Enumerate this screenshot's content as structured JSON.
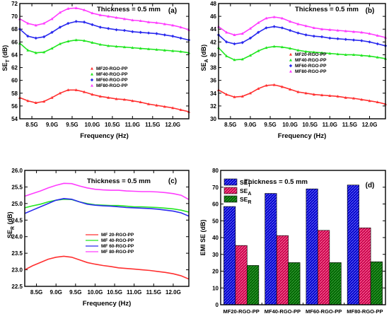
{
  "panel_labels": [
    "(a)",
    "(b)",
    "(c)",
    "(d)"
  ],
  "thickness_text": "Thickness = 0.5 mm",
  "colors": {
    "MF20": "#ff3030",
    "MF40": "#22e622",
    "MF60": "#2a2aee",
    "MF80": "#ff3dff",
    "bar_T": "#0000c8",
    "bar_A": "#c8004a",
    "bar_R": "#006400"
  },
  "chart_data": [
    {
      "type": "line",
      "panel": "(a)",
      "title": "Thickness = 0.5 mm",
      "xlabel": "Frequency (Hz)",
      "ylabel": "SE",
      "ylabel_sub": "T",
      "ylabel_unit": " (dB)",
      "xlim": [
        8.2,
        12.4
      ],
      "ylim": [
        54,
        72
      ],
      "xticks": [
        8.5,
        9.0,
        9.5,
        10.0,
        10.5,
        11.0,
        11.5,
        12.0
      ],
      "xtick_labels": [
        "8.5G",
        "9.0G",
        "9.5G",
        "10.0G",
        "10.5G",
        "11.0G",
        "11.5G",
        "12.0G"
      ],
      "yticks": [
        54,
        56,
        58,
        60,
        62,
        64,
        66,
        68,
        70,
        72
      ],
      "ytick_labels": [
        "54",
        "56",
        "58",
        "60",
        "62",
        "64",
        "66",
        "68",
        "70",
        "72"
      ],
      "legend_position": "center-right",
      "x": [
        8.2,
        8.4,
        8.6,
        8.8,
        9.0,
        9.2,
        9.4,
        9.6,
        9.8,
        10.0,
        10.2,
        10.4,
        10.6,
        10.8,
        11.0,
        11.2,
        11.4,
        11.6,
        11.8,
        12.0,
        12.2,
        12.4
      ],
      "series": [
        {
          "name": "MF20-RGO-PP",
          "color_key": "MF20",
          "marker": "triangle",
          "values": [
            57.3,
            56.8,
            56.5,
            56.7,
            57.3,
            58.0,
            58.5,
            58.5,
            58.2,
            57.8,
            57.5,
            57.3,
            57.1,
            57.0,
            56.8,
            56.6,
            56.3,
            56.1,
            55.9,
            55.7,
            55.4,
            55.1
          ]
        },
        {
          "name": "MF40-RGO-PP",
          "color_key": "MF40",
          "marker": "triangle",
          "values": [
            65.8,
            64.7,
            64.3,
            64.4,
            65.0,
            65.7,
            66.1,
            66.3,
            66.2,
            65.9,
            65.6,
            65.4,
            65.3,
            65.2,
            65.1,
            65.0,
            64.9,
            64.8,
            64.7,
            64.6,
            64.5,
            64.3
          ]
        },
        {
          "name": "MF60-RGO-PP",
          "color_key": "MF60",
          "marker": "diamond",
          "values": [
            68.0,
            66.9,
            66.6,
            66.8,
            67.5,
            68.3,
            68.9,
            69.2,
            69.1,
            68.7,
            68.3,
            68.1,
            67.9,
            67.8,
            67.6,
            67.5,
            67.4,
            67.3,
            67.1,
            66.9,
            66.6,
            66.3
          ]
        },
        {
          "name": "MF80-RGO-PP",
          "color_key": "MF80",
          "marker": "triangle",
          "values": [
            69.6,
            68.9,
            68.6,
            68.9,
            69.6,
            70.6,
            71.2,
            71.3,
            71.0,
            70.5,
            70.2,
            70.0,
            69.8,
            69.6,
            69.4,
            69.3,
            69.1,
            69.0,
            68.8,
            68.6,
            68.3,
            67.9
          ]
        }
      ]
    },
    {
      "type": "line",
      "panel": "(b)",
      "title": "Thickness = 0.5 mm",
      "xlabel": "Frequency (Hz)",
      "ylabel": "SE",
      "ylabel_sub": "A",
      "ylabel_unit": " (dB)",
      "xlim": [
        8.2,
        12.4
      ],
      "ylim": [
        30,
        48
      ],
      "xticks": [
        8.5,
        9.0,
        9.5,
        10.0,
        10.5,
        11.0,
        11.5,
        12.0
      ],
      "xtick_labels": [
        "8.5G",
        "9.0G",
        "9.5G",
        "10.0G",
        "10.5G",
        "11.0G",
        "11.5G",
        "12.0G"
      ],
      "yticks": [
        30,
        32,
        34,
        36,
        38,
        40,
        42,
        44,
        46,
        48
      ],
      "ytick_labels": [
        "30",
        "32",
        "34",
        "36",
        "38",
        "40",
        "42",
        "44",
        "46",
        "48"
      ],
      "legend_position": "center-right",
      "x": [
        8.2,
        8.4,
        8.6,
        8.8,
        9.0,
        9.2,
        9.4,
        9.6,
        9.8,
        10.0,
        10.2,
        10.4,
        10.6,
        10.8,
        11.0,
        11.2,
        11.4,
        11.6,
        11.8,
        12.0,
        12.2,
        12.4
      ],
      "series": [
        {
          "name": "MF20-RGO-PP",
          "color_key": "MF20",
          "marker": "triangle",
          "values": [
            34.5,
            33.8,
            33.4,
            33.5,
            34.0,
            34.7,
            35.2,
            35.3,
            35.0,
            34.6,
            34.2,
            34.0,
            33.8,
            33.7,
            33.6,
            33.5,
            33.3,
            33.2,
            33.0,
            32.8,
            32.6,
            32.3
          ]
        },
        {
          "name": "MF40-RGO-PP",
          "color_key": "MF40",
          "marker": "triangle",
          "values": [
            41.1,
            39.8,
            39.2,
            39.3,
            39.9,
            40.6,
            41.1,
            41.3,
            41.2,
            41.0,
            40.7,
            40.5,
            40.4,
            40.3,
            40.2,
            40.1,
            40.0,
            40.0,
            39.9,
            39.8,
            39.6,
            39.4
          ]
        },
        {
          "name": "MF60-RGO-PP",
          "color_key": "MF60",
          "marker": "diamond",
          "values": [
            43.1,
            42.0,
            41.7,
            41.9,
            42.6,
            43.5,
            44.2,
            44.4,
            44.2,
            43.8,
            43.4,
            43.1,
            42.9,
            42.8,
            42.6,
            42.5,
            42.4,
            42.3,
            42.2,
            42.0,
            41.7,
            41.4
          ]
        },
        {
          "name": "MF80-RGO-PP",
          "color_key": "MF80",
          "marker": "triangle",
          "values": [
            44.4,
            43.5,
            43.1,
            43.3,
            44.1,
            45.0,
            45.7,
            45.9,
            45.7,
            45.2,
            44.8,
            44.5,
            44.2,
            44.0,
            43.9,
            43.8,
            43.7,
            43.6,
            43.5,
            43.3,
            43.0,
            42.7
          ]
        }
      ]
    },
    {
      "type": "line",
      "panel": "(c)",
      "title": "Thickness = 0.5 mm",
      "xlabel": "Frequency (Hz)",
      "ylabel": "SE",
      "ylabel_sub": "R",
      "ylabel_unit": " (dB)",
      "xlim": [
        8.2,
        12.4
      ],
      "ylim": [
        22.5,
        26.0
      ],
      "xticks": [
        8.5,
        9.0,
        9.5,
        10.0,
        10.5,
        11.0,
        11.5,
        12.0
      ],
      "xtick_labels": [
        "8.5G",
        "9.0G",
        "9.5G",
        "10.0G",
        "10.5G",
        "11.0G",
        "11.5G",
        "12.0G"
      ],
      "yticks": [
        22.5,
        23.0,
        23.5,
        24.0,
        24.5,
        25.0,
        25.5,
        26.0
      ],
      "ytick_labels": [
        "22.5",
        "23.0",
        "23.5",
        "24.0",
        "24.5",
        "25.0",
        "25.5",
        "26.0"
      ],
      "legend_position": "center-right",
      "x": [
        8.2,
        8.4,
        8.6,
        8.8,
        9.0,
        9.2,
        9.4,
        9.6,
        9.8,
        10.0,
        10.2,
        10.4,
        10.6,
        10.8,
        11.0,
        11.2,
        11.4,
        11.6,
        11.8,
        12.0,
        12.2,
        12.4
      ],
      "series": [
        {
          "name": "MF 20-RGO-PP",
          "color_key": "MF20",
          "marker": "none",
          "values": [
            23.0,
            23.12,
            23.22,
            23.32,
            23.38,
            23.41,
            23.38,
            23.3,
            23.22,
            23.17,
            23.13,
            23.1,
            23.06,
            23.04,
            23.02,
            23.0,
            22.98,
            22.95,
            22.92,
            22.88,
            22.82,
            22.72
          ]
        },
        {
          "name": "MF 40-RGO-PP",
          "color_key": "MF40",
          "marker": "none",
          "values": [
            24.87,
            24.93,
            24.98,
            25.05,
            25.1,
            25.13,
            25.12,
            25.05,
            25.0,
            24.96,
            24.95,
            24.94,
            24.94,
            24.92,
            24.9,
            24.9,
            24.89,
            24.88,
            24.86,
            24.84,
            24.8,
            24.74
          ]
        },
        {
          "name": "MF 60-RGO-PP",
          "color_key": "MF60",
          "marker": "none",
          "values": [
            24.7,
            24.8,
            24.9,
            25.0,
            25.1,
            25.15,
            25.13,
            25.05,
            24.98,
            24.95,
            24.93,
            24.92,
            24.9,
            24.88,
            24.87,
            24.86,
            24.85,
            24.83,
            24.8,
            24.77,
            24.72,
            24.62
          ]
        },
        {
          "name": "MF 80-RGO-PP",
          "color_key": "MF80",
          "marker": "none",
          "values": [
            25.22,
            25.3,
            25.38,
            25.47,
            25.55,
            25.61,
            25.6,
            25.53,
            25.47,
            25.43,
            25.41,
            25.4,
            25.4,
            25.38,
            25.37,
            25.36,
            25.36,
            25.35,
            25.33,
            25.3,
            25.25,
            25.12
          ]
        }
      ]
    },
    {
      "type": "bar",
      "panel": "(d)",
      "title": "Thickness = 0.5 mm",
      "xlabel": "",
      "ylabel": "EMI SE (dB)",
      "ylim": [
        0,
        80
      ],
      "yticks": [
        0,
        10,
        20,
        30,
        40,
        50,
        60,
        70,
        80
      ],
      "ytick_labels": [
        "0",
        "10",
        "20",
        "30",
        "40",
        "50",
        "60",
        "70",
        "80"
      ],
      "legend_position": "top-left",
      "categories": [
        "MF20-RGO-PP",
        "MF40-RGO-PP",
        "MF60-RGO-PP",
        "MF80-RGO-PP"
      ],
      "series": [
        {
          "name": "SE",
          "sub": "T",
          "color_key": "bar_T",
          "values": [
            58.5,
            66.3,
            69.0,
            71.3
          ]
        },
        {
          "name": "SE",
          "sub": "A",
          "color_key": "bar_A",
          "values": [
            35.3,
            41.2,
            44.3,
            45.8
          ]
        },
        {
          "name": "SE",
          "sub": "R",
          "color_key": "bar_R",
          "values": [
            23.4,
            25.1,
            25.1,
            25.6
          ]
        }
      ]
    }
  ]
}
